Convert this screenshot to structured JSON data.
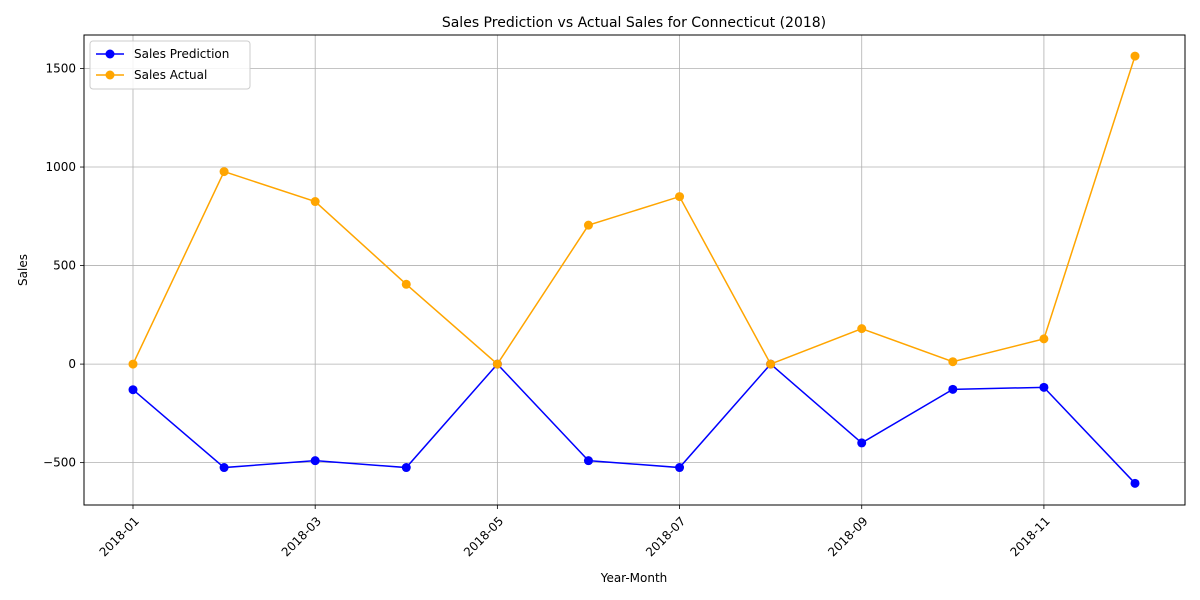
{
  "chart_data": {
    "type": "line",
    "title": "Sales Prediction vs Actual Sales for Connecticut (2018)",
    "xlabel": "Year-Month",
    "ylabel": "Sales",
    "x": [
      "2018-01",
      "2018-02",
      "2018-03",
      "2018-04",
      "2018-05",
      "2018-06",
      "2018-07",
      "2018-08",
      "2018-09",
      "2018-10",
      "2018-11",
      "2018-12"
    ],
    "xticks": [
      "2018-01",
      "2018-03",
      "2018-05",
      "2018-07",
      "2018-09",
      "2018-11"
    ],
    "yticks": [
      -500,
      0,
      500,
      1000,
      1500
    ],
    "ylim": [
      -715,
      1670
    ],
    "grid": true,
    "legend_position": "top-left",
    "series": [
      {
        "name": "Sales Prediction",
        "color": "#0000ff",
        "values": [
          -130,
          -525,
          -490,
          -525,
          0,
          -490,
          -525,
          0,
          -400,
          -128,
          -118,
          -605
        ]
      },
      {
        "name": "Sales Actual",
        "color": "#ffa500",
        "values": [
          0,
          977,
          825,
          405,
          0,
          705,
          850,
          0,
          180,
          12,
          128,
          1563
        ]
      }
    ]
  }
}
